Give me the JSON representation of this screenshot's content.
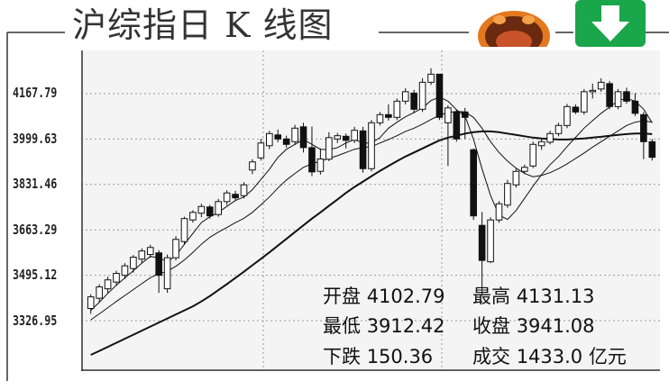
{
  "header": {
    "title": "沪综指日 K 线图"
  },
  "chart_data": {
    "type": "candlestick",
    "title": "沪综指日 K 线图",
    "y_ticks": [
      "4167.79",
      "3999.63",
      "3831.46",
      "3663.29",
      "3495.12",
      "3326.95"
    ],
    "y_tick_values": [
      4167.79,
      3999.63,
      3831.46,
      3663.29,
      3495.12,
      3326.95
    ],
    "ylim": [
      3200,
      4300
    ],
    "grid": true,
    "candles": [
      [
        3372,
        3415,
        3352,
        3425
      ],
      [
        3410,
        3452,
        3395,
        3462
      ],
      [
        3445,
        3478,
        3430,
        3490
      ],
      [
        3470,
        3502,
        3455,
        3512
      ],
      [
        3495,
        3530,
        3482,
        3540
      ],
      [
        3520,
        3562,
        3505,
        3570
      ],
      [
        3555,
        3585,
        3540,
        3595
      ],
      [
        3572,
        3598,
        3560,
        3608
      ],
      [
        3578,
        3495,
        3430,
        3588
      ],
      [
        3445,
        3560,
        3430,
        3572
      ],
      [
        3560,
        3628,
        3550,
        3640
      ],
      [
        3620,
        3705,
        3610,
        3712
      ],
      [
        3700,
        3728,
        3690,
        3736
      ],
      [
        3725,
        3750,
        3710,
        3760
      ],
      [
        3748,
        3715,
        3705,
        3756
      ],
      [
        3720,
        3768,
        3712,
        3778
      ],
      [
        3768,
        3800,
        3755,
        3810
      ],
      [
        3795,
        3782,
        3770,
        3808
      ],
      [
        3790,
        3830,
        3780,
        3840
      ],
      [
        3885,
        3915,
        3870,
        3925
      ],
      [
        3930,
        3985,
        3920,
        4000
      ],
      [
        3975,
        4020,
        3962,
        4030
      ],
      [
        4015,
        4000,
        3988,
        4035
      ],
      [
        4000,
        3980,
        3968,
        4012
      ],
      [
        3990,
        4040,
        3978,
        4052
      ],
      [
        4045,
        3968,
        3950,
        4060
      ],
      [
        3968,
        3878,
        3862,
        4046
      ],
      [
        3880,
        3926,
        3868,
        3965
      ],
      [
        3925,
        4005,
        3918,
        4025
      ],
      [
        4000,
        4012,
        3985,
        4022
      ],
      [
        4010,
        3995,
        3965,
        4020
      ],
      [
        3995,
        4032,
        3985,
        4045
      ],
      [
        4030,
        3890,
        3875,
        4045
      ],
      [
        3890,
        4060,
        3880,
        4070
      ],
      [
        4060,
        4090,
        4050,
        4100
      ],
      [
        4090,
        4080,
        4068,
        4128
      ],
      [
        4080,
        4140,
        4070,
        4150
      ],
      [
        4140,
        4175,
        4128,
        4188
      ],
      [
        4170,
        4110,
        4095,
        4182
      ],
      [
        4110,
        4210,
        4100,
        4225
      ],
      [
        4210,
        4240,
        4200,
        4262
      ],
      [
        4240,
        4080,
        4070,
        4240
      ],
      [
        4060,
        4115,
        3900,
        4125
      ],
      [
        4100,
        4000,
        3990,
        4110
      ],
      [
        4100,
        4080,
        4000,
        4115
      ],
      [
        3960,
        3715,
        3700,
        3965
      ],
      [
        3680,
        3550,
        3420,
        3730
      ],
      [
        3545,
        3700,
        3540,
        3710
      ],
      [
        3700,
        3760,
        3690,
        3770
      ],
      [
        3755,
        3835,
        3745,
        3848
      ],
      [
        3830,
        3880,
        3820,
        3890
      ],
      [
        3880,
        3895,
        3870,
        3905
      ],
      [
        3900,
        3980,
        3892,
        3990
      ],
      [
        3975,
        3990,
        3960,
        4000
      ],
      [
        3988,
        4020,
        3980,
        4030
      ],
      [
        4020,
        4050,
        4010,
        4060
      ],
      [
        4050,
        4120,
        4040,
        4130
      ],
      [
        4118,
        4100,
        4092,
        4128
      ],
      [
        4100,
        4175,
        4090,
        4185
      ],
      [
        4175,
        4180,
        4150,
        4205
      ],
      [
        4185,
        4210,
        4175,
        4225
      ],
      [
        4205,
        4120,
        4110,
        4215
      ],
      [
        4120,
        4175,
        4110,
        4185
      ],
      [
        4175,
        4140,
        4130,
        4190
      ],
      [
        4140,
        4095,
        4085,
        4170
      ],
      [
        4090,
        3990,
        3925,
        4100
      ],
      [
        3990,
        3932,
        3920,
        4000
      ]
    ],
    "ma_short": [
      3365,
      3395,
      3428,
      3458,
      3485,
      3512,
      3540,
      3565,
      3560,
      3545,
      3568,
      3610,
      3650,
      3690,
      3712,
      3728,
      3750,
      3772,
      3785,
      3812,
      3850,
      3888,
      3932,
      3962,
      3980,
      3998,
      3980,
      3962,
      3960,
      3968,
      3985,
      3998,
      3985,
      3985,
      4005,
      4040,
      4062,
      4082,
      4098,
      4115,
      4142,
      4155,
      4140,
      4108,
      4085,
      3999,
      3890,
      3790,
      3718,
      3702,
      3735,
      3780,
      3825,
      3868,
      3905,
      3935,
      3972,
      4006,
      4040,
      4068,
      4095,
      4118,
      4142,
      4150,
      4140,
      4110,
      4060
    ],
    "ma_mid": [
      3330,
      3352,
      3375,
      3398,
      3420,
      3442,
      3464,
      3486,
      3500,
      3510,
      3528,
      3552,
      3580,
      3610,
      3636,
      3655,
      3672,
      3690,
      3706,
      3728,
      3756,
      3785,
      3818,
      3848,
      3872,
      3895,
      3908,
      3918,
      3928,
      3938,
      3950,
      3962,
      3968,
      3972,
      3985,
      3998,
      4012,
      4028,
      4040,
      4055,
      4072,
      4088,
      4098,
      4102,
      4100,
      4080,
      4040,
      3990,
      3950,
      3918,
      3892,
      3872,
      3860,
      3865,
      3875,
      3890,
      3908,
      3928,
      3948,
      3970,
      3990,
      4010,
      4030,
      4050,
      4062,
      4068,
      4062
    ],
    "ma_long": [
      3200,
      3215,
      3230,
      3245,
      3260,
      3275,
      3290,
      3305,
      3320,
      3335,
      3350,
      3365,
      3380,
      3398,
      3418,
      3440,
      3462,
      3485,
      3508,
      3532,
      3556,
      3580,
      3605,
      3630,
      3655,
      3680,
      3705,
      3728,
      3752,
      3776,
      3800,
      3822,
      3842,
      3862,
      3882,
      3900,
      3918,
      3935,
      3950,
      3965,
      3980,
      3995,
      4005,
      4012,
      4020,
      4025,
      4028,
      4028,
      4025,
      4020,
      4015,
      4010,
      4005,
      4002,
      4000,
      3998,
      3998,
      4000,
      4002,
      4005,
      4008,
      4012,
      4015,
      4018,
      4020,
      4020,
      4018
    ]
  },
  "info": {
    "open_label": "开盘",
    "open_value": "4102.79",
    "high_label": "最高",
    "high_value": "4131.13",
    "low_label": "最低",
    "low_value": "3912.42",
    "close_label": "收盘",
    "close_value": "3941.08",
    "change_label": "下跌",
    "change_value": "150.36",
    "volume_label": "成交",
    "volume_value": "1433.0 亿元"
  },
  "colors": {
    "up": "#ffffff",
    "down": "#111111",
    "grid": "#9a9a9a",
    "plot_bg": "#f4f4f4",
    "button_green": "#1aa64a"
  },
  "icons": {
    "mascot": "face-mascot-icon",
    "down": "down-arrow-icon"
  }
}
